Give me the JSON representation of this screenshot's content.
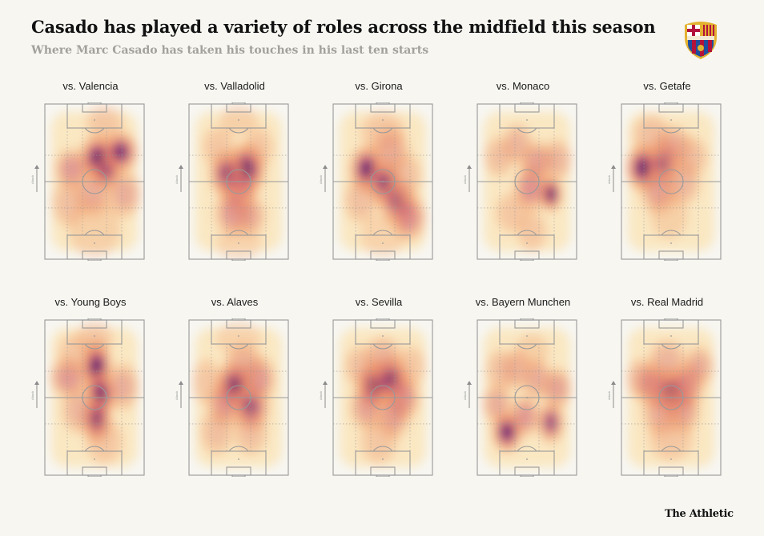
{
  "title": "Casado has played a variety of roles across the midfield this season",
  "subtitle": "Where Marc Casado has taken his touches in his last ten starts",
  "credit": "The Athletic",
  "crest": {
    "colors": {
      "blue": "#1f4e9e",
      "red": "#b3123b",
      "gold": "#e3b230",
      "white": "#ffffff"
    }
  },
  "direction_label": "Attack",
  "colors": {
    "background": "#f7f6f1",
    "pitch_line": "#999999",
    "heat_low": "#fbe3b3",
    "heat_mid": "#f0925f",
    "heat_high": "#b7407d",
    "heat_peak": "#3a0b6a"
  },
  "chart_data": {
    "type": "heatmap",
    "description_units": "pitch coordinates: x 0-100 left to right, y 0-100 from own goal (bottom) to opposing goal (top); intensity 0-1",
    "panels": [
      {
        "label": "vs. Valencia",
        "blobs": [
          [
            54,
            65,
            10,
            8,
            1.0
          ],
          [
            76,
            69,
            9,
            7,
            0.9
          ],
          [
            62,
            56,
            8,
            6,
            0.7
          ],
          [
            27,
            58,
            9,
            7,
            0.55
          ],
          [
            48,
            42,
            10,
            8,
            0.45
          ],
          [
            80,
            42,
            9,
            8,
            0.45
          ],
          [
            24,
            36,
            9,
            8,
            0.35
          ],
          [
            60,
            88,
            10,
            6,
            0.3
          ],
          [
            50,
            20,
            14,
            10,
            0.25
          ]
        ]
      },
      {
        "label": "vs. Valladolid",
        "blobs": [
          [
            58,
            58,
            10,
            9,
            1.0
          ],
          [
            38,
            55,
            9,
            8,
            0.8
          ],
          [
            50,
            45,
            10,
            8,
            0.6
          ],
          [
            45,
            30,
            10,
            8,
            0.55
          ],
          [
            62,
            28,
            8,
            7,
            0.45
          ],
          [
            30,
            72,
            9,
            7,
            0.3
          ],
          [
            70,
            72,
            8,
            7,
            0.3
          ],
          [
            50,
            90,
            10,
            5,
            0.25
          ],
          [
            50,
            10,
            12,
            6,
            0.2
          ]
        ]
      },
      {
        "label": "vs. Girona",
        "blobs": [
          [
            34,
            58,
            9,
            8,
            0.95
          ],
          [
            52,
            49,
            9,
            8,
            0.8
          ],
          [
            65,
            37,
            10,
            8,
            0.7
          ],
          [
            76,
            27,
            9,
            8,
            0.6
          ],
          [
            58,
            70,
            10,
            8,
            0.45
          ],
          [
            28,
            38,
            9,
            8,
            0.35
          ],
          [
            50,
            82,
            12,
            7,
            0.3
          ],
          [
            72,
            54,
            9,
            8,
            0.35
          ],
          [
            50,
            15,
            12,
            7,
            0.2
          ]
        ]
      },
      {
        "label": "vs. Monaco",
        "blobs": [
          [
            74,
            42,
            6,
            6,
            1.0
          ],
          [
            54,
            46,
            9,
            8,
            0.6
          ],
          [
            60,
            63,
            9,
            7,
            0.5
          ],
          [
            40,
            74,
            8,
            7,
            0.4
          ],
          [
            22,
            66,
            8,
            7,
            0.35
          ],
          [
            80,
            64,
            8,
            7,
            0.4
          ],
          [
            55,
            18,
            8,
            7,
            0.3
          ],
          [
            35,
            30,
            9,
            7,
            0.3
          ]
        ]
      },
      {
        "label": "vs. Getafe",
        "blobs": [
          [
            22,
            59,
            9,
            8,
            1.0
          ],
          [
            42,
            62,
            9,
            8,
            0.7
          ],
          [
            52,
            73,
            10,
            7,
            0.45
          ],
          [
            38,
            44,
            10,
            8,
            0.5
          ],
          [
            62,
            50,
            9,
            8,
            0.4
          ],
          [
            30,
            80,
            10,
            7,
            0.35
          ],
          [
            70,
            66,
            9,
            7,
            0.35
          ],
          [
            48,
            28,
            10,
            8,
            0.25
          ]
        ]
      },
      {
        "label": "vs. Young Boys",
        "blobs": [
          [
            52,
            70,
            8,
            9,
            1.0
          ],
          [
            56,
            52,
            8,
            8,
            0.95
          ],
          [
            52,
            36,
            8,
            8,
            0.85
          ],
          [
            24,
            63,
            10,
            7,
            0.55
          ],
          [
            78,
            57,
            9,
            8,
            0.45
          ],
          [
            34,
            42,
            9,
            8,
            0.4
          ],
          [
            60,
            22,
            10,
            8,
            0.3
          ],
          [
            50,
            88,
            10,
            6,
            0.3
          ],
          [
            30,
            78,
            9,
            7,
            0.3
          ]
        ]
      },
      {
        "label": "vs. Alaves",
        "blobs": [
          [
            46,
            58,
            10,
            8,
            0.95
          ],
          [
            62,
            44,
            10,
            8,
            0.75
          ],
          [
            36,
            46,
            9,
            8,
            0.55
          ],
          [
            70,
            62,
            9,
            8,
            0.55
          ],
          [
            55,
            72,
            10,
            7,
            0.4
          ],
          [
            28,
            28,
            9,
            8,
            0.35
          ],
          [
            62,
            28,
            9,
            8,
            0.35
          ],
          [
            50,
            88,
            12,
            6,
            0.2
          ],
          [
            18,
            60,
            8,
            8,
            0.3
          ]
        ]
      },
      {
        "label": "vs. Sevilla",
        "blobs": [
          [
            42,
            58,
            10,
            8,
            0.95
          ],
          [
            58,
            62,
            10,
            8,
            0.85
          ],
          [
            70,
            50,
            9,
            8,
            0.6
          ],
          [
            34,
            44,
            9,
            8,
            0.5
          ],
          [
            60,
            38,
            9,
            8,
            0.5
          ],
          [
            50,
            76,
            10,
            7,
            0.4
          ],
          [
            28,
            70,
            9,
            7,
            0.35
          ],
          [
            78,
            70,
            8,
            7,
            0.3
          ],
          [
            46,
            22,
            10,
            8,
            0.3
          ]
        ]
      },
      {
        "label": "vs. Bayern Munchen",
        "blobs": [
          [
            30,
            28,
            8,
            7,
            0.95
          ],
          [
            74,
            34,
            7,
            7,
            0.75
          ],
          [
            48,
            38,
            8,
            7,
            0.55
          ],
          [
            20,
            46,
            8,
            7,
            0.45
          ],
          [
            60,
            62,
            8,
            7,
            0.45
          ],
          [
            80,
            56,
            8,
            7,
            0.5
          ],
          [
            40,
            68,
            8,
            7,
            0.4
          ],
          [
            24,
            68,
            8,
            7,
            0.35
          ],
          [
            55,
            80,
            9,
            6,
            0.25
          ]
        ]
      },
      {
        "label": "vs. Real Madrid",
        "blobs": [
          [
            50,
            54,
            10,
            8,
            0.85
          ],
          [
            32,
            58,
            9,
            8,
            0.6
          ],
          [
            66,
            58,
            9,
            8,
            0.6
          ],
          [
            62,
            42,
            9,
            8,
            0.5
          ],
          [
            40,
            40,
            10,
            8,
            0.45
          ],
          [
            78,
            70,
            8,
            7,
            0.45
          ],
          [
            20,
            62,
            8,
            7,
            0.4
          ],
          [
            46,
            74,
            10,
            7,
            0.4
          ],
          [
            50,
            24,
            12,
            8,
            0.3
          ]
        ]
      }
    ]
  }
}
